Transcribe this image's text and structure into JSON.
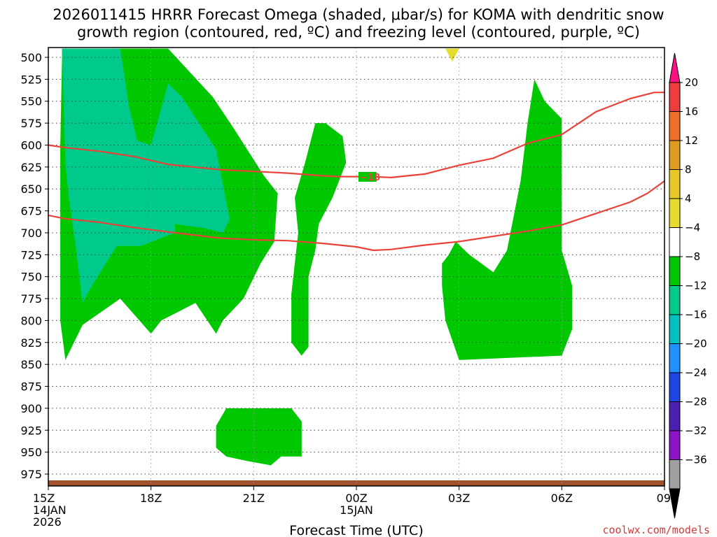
{
  "title": {
    "line1": "2026011415 HRRR Forecast Omega (shaded, μbar/s) for KOMA with dendritic snow",
    "line2": "growth region (contoured, red, ºC) and freezing level (contoured, purple, ºC)"
  },
  "xlabel": "Forecast Time (UTC)",
  "credit": "coolwx.com/models",
  "chart_data": {
    "type": "time-height cross section",
    "title": "2026011415 HRRR Forecast Omega (shaded, μbar/s) for KOMA with dendritic snow growth region (contoured, red, ºC) and freezing level (contoured, purple, ºC)",
    "xlabel": "Forecast Time (UTC)",
    "ylabel": "",
    "x_range_hours_from_15Z": [
      0,
      18
    ],
    "y_range_hPa": [
      990,
      490
    ],
    "y_reversed": true,
    "grid": true,
    "x_ticks": [
      {
        "hour": 0,
        "lines": [
          "15Z",
          "14JAN",
          "2026"
        ]
      },
      {
        "hour": 3,
        "lines": [
          "18Z"
        ]
      },
      {
        "hour": 6,
        "lines": [
          "21Z"
        ]
      },
      {
        "hour": 9,
        "lines": [
          "00Z",
          "15JAN"
        ]
      },
      {
        "hour": 12,
        "lines": [
          "03Z"
        ]
      },
      {
        "hour": 15,
        "lines": [
          "06Z"
        ]
      },
      {
        "hour": 18,
        "lines": [
          "09Z"
        ]
      }
    ],
    "y_ticks": [
      500,
      525,
      550,
      575,
      600,
      625,
      650,
      675,
      700,
      725,
      750,
      775,
      800,
      825,
      850,
      875,
      900,
      925,
      950,
      975
    ],
    "colorbar": {
      "ticks": [
        "20",
        "16",
        "12",
        "8",
        "4",
        "−4",
        "−8",
        "−12",
        "−16",
        "−20",
        "−24",
        "−28",
        "−32",
        "−36"
      ],
      "colors": [
        "#ff1080",
        "#f03c3c",
        "#f07028",
        "#e09a20",
        "#e8c828",
        "#e6dc30",
        "#ffffff",
        "#00c800",
        "#00c98c",
        "#00c0c0",
        "#1e90ff",
        "#1e46e6",
        "#4b1eb4",
        "#8c14c8",
        "#a0a0a0",
        "#000000"
      ]
    },
    "shaded_regions": [
      {
        "level": "-4",
        "color": "#00c800",
        "points": [
          [
            0.4,
            490
          ],
          [
            3.5,
            490
          ],
          [
            4.8,
            545
          ],
          [
            5.4,
            580
          ],
          [
            6.3,
            635
          ],
          [
            6.7,
            655
          ],
          [
            6.6,
            710
          ],
          [
            6.2,
            735
          ],
          [
            5.7,
            775
          ],
          [
            5.1,
            800
          ],
          [
            4.9,
            815
          ],
          [
            4.3,
            780
          ],
          [
            3.3,
            800
          ],
          [
            3.0,
            815
          ],
          [
            2.1,
            775
          ],
          [
            1.0,
            805
          ],
          [
            0.5,
            845
          ],
          [
            0.35,
            800
          ],
          [
            0.35,
            700
          ],
          [
            0.35,
            600
          ],
          [
            0.4,
            500
          ]
        ]
      },
      {
        "level": "-8",
        "color": "#00c98c",
        "points": [
          [
            0.4,
            490
          ],
          [
            2.1,
            490
          ],
          [
            2.35,
            555
          ],
          [
            2.6,
            595
          ],
          [
            3.0,
            600
          ],
          [
            3.5,
            530
          ],
          [
            3.9,
            545
          ],
          [
            4.9,
            605
          ],
          [
            5.3,
            685
          ],
          [
            5.1,
            700
          ],
          [
            4.6,
            695
          ],
          [
            3.7,
            690
          ],
          [
            3.7,
            700
          ],
          [
            2.7,
            715
          ],
          [
            2.0,
            715
          ],
          [
            1.2,
            765
          ],
          [
            1.0,
            780
          ],
          [
            0.8,
            715
          ],
          [
            0.6,
            660
          ],
          [
            0.5,
            620
          ]
        ]
      },
      {
        "level": "-4",
        "color": "#00c800",
        "points": [
          [
            7.8,
            575
          ],
          [
            8.1,
            575
          ],
          [
            8.6,
            590
          ],
          [
            8.7,
            620
          ],
          [
            8.5,
            640
          ],
          [
            8.3,
            660
          ],
          [
            7.9,
            690
          ],
          [
            7.8,
            720
          ],
          [
            7.6,
            750
          ],
          [
            7.6,
            810
          ],
          [
            7.6,
            830
          ],
          [
            7.4,
            840
          ],
          [
            7.1,
            825
          ],
          [
            7.1,
            770
          ],
          [
            7.3,
            700
          ],
          [
            7.2,
            660
          ],
          [
            7.5,
            620
          ]
        ]
      },
      {
        "level": "-4",
        "color": "#00c800",
        "points": [
          [
            11.7,
            725
          ],
          [
            11.9,
            710
          ],
          [
            12.3,
            725
          ],
          [
            13.0,
            745
          ],
          [
            13.4,
            720
          ],
          [
            13.8,
            640
          ],
          [
            14.0,
            575
          ],
          [
            14.2,
            525
          ],
          [
            14.5,
            550
          ],
          [
            15.0,
            570
          ],
          [
            15.0,
            720
          ],
          [
            15.3,
            760
          ],
          [
            15.3,
            810
          ],
          [
            15.0,
            840
          ],
          [
            12.0,
            845
          ],
          [
            11.6,
            800
          ],
          [
            11.5,
            760
          ],
          [
            11.5,
            735
          ]
        ]
      },
      {
        "level": "-4",
        "color": "#00c800",
        "points": [
          [
            4.9,
            920
          ],
          [
            5.2,
            900
          ],
          [
            7.1,
            900
          ],
          [
            7.4,
            915
          ],
          [
            7.4,
            955
          ],
          [
            6.8,
            955
          ],
          [
            6.5,
            965
          ],
          [
            5.8,
            960
          ],
          [
            5.2,
            955
          ],
          [
            4.9,
            945
          ]
        ]
      },
      {
        "level": "4",
        "color": "#e6dc30",
        "points": [
          [
            11.6,
            490
          ],
          [
            12.0,
            490
          ],
          [
            11.8,
            505
          ]
        ]
      }
    ],
    "dgz_contours": [
      {
        "points": [
          [
            0,
            600
          ],
          [
            0.5,
            603
          ],
          [
            1.5,
            607
          ],
          [
            2.5,
            613
          ],
          [
            3.5,
            622
          ],
          [
            5.0,
            628
          ],
          [
            6.0,
            630
          ],
          [
            7.0,
            632
          ],
          [
            8.0,
            635
          ],
          [
            8.5,
            636
          ],
          [
            9.5,
            636
          ],
          [
            10.0,
            637
          ],
          [
            11.0,
            633
          ],
          [
            12.0,
            623
          ],
          [
            13.0,
            615
          ],
          [
            14.0,
            598
          ],
          [
            15.0,
            588
          ],
          [
            16.0,
            562
          ],
          [
            17.0,
            547
          ],
          [
            17.7,
            540
          ],
          [
            18.0,
            540
          ]
        ],
        "label": "−18",
        "label_at": [
          9.1,
          637
        ]
      },
      {
        "points": [
          [
            0,
            680
          ],
          [
            0.5,
            684
          ],
          [
            1.5,
            688
          ],
          [
            2.5,
            694
          ],
          [
            3.5,
            699
          ],
          [
            5.0,
            706
          ],
          [
            6.0,
            708
          ],
          [
            7.0,
            709
          ],
          [
            8.0,
            712
          ],
          [
            9.0,
            716
          ],
          [
            9.5,
            720
          ],
          [
            10.0,
            719
          ],
          [
            11.0,
            714
          ],
          [
            12.0,
            710
          ],
          [
            13.0,
            704
          ],
          [
            14.0,
            698
          ],
          [
            15.0,
            691
          ],
          [
            16.0,
            678
          ],
          [
            17.0,
            665
          ],
          [
            17.5,
            655
          ],
          [
            18.0,
            641
          ]
        ]
      }
    ],
    "terrain_band_hPa": [
      990,
      993
    ]
  }
}
